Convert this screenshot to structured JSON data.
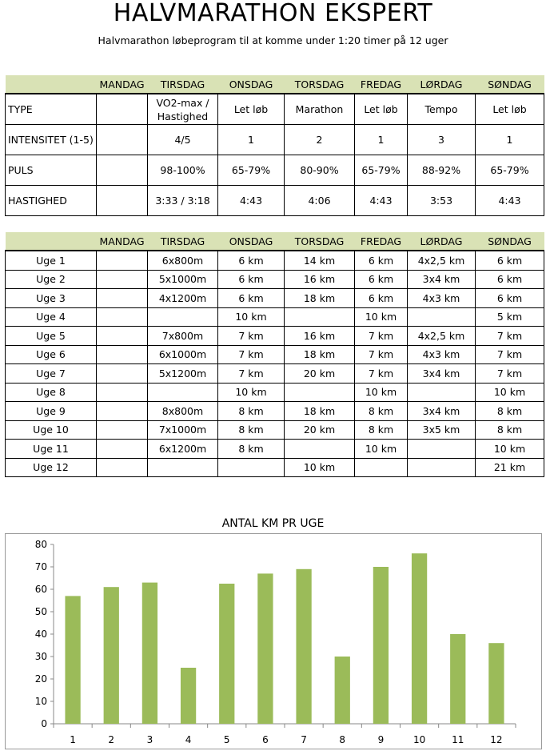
{
  "title": "HALVMARATHON EKSPERT",
  "subtitle": "Halvmarathon løbeprogram til at komme under 1:20 timer på 12 uger",
  "days": [
    "MANDAG",
    "TIRSDAG",
    "ONSDAG",
    "TORSDAG",
    "FREDAG",
    "LØRDAG",
    "SØNDAG"
  ],
  "intensity_table": {
    "rows": [
      {
        "label": "TYPE",
        "values": [
          "",
          "VO2-max / Hastighed",
          "Let løb",
          "Marathon",
          "Let løb",
          "Tempo",
          "Let løb"
        ]
      },
      {
        "label": "INTENSITET (1-5)",
        "values": [
          "",
          "4/5",
          "1",
          "2",
          "1",
          "3",
          "1"
        ]
      },
      {
        "label": "PULS",
        "values": [
          "",
          "98-100%",
          "65-79%",
          "80-90%",
          "65-79%",
          "88-92%",
          "65-79%"
        ]
      },
      {
        "label": "HASTIGHED",
        "values": [
          "",
          "3:33 / 3:18",
          "4:43",
          "4:06",
          "4:43",
          "3:53",
          "4:43"
        ]
      }
    ]
  },
  "schedule": {
    "weeks": [
      {
        "label": "Uge 1",
        "values": [
          "",
          "6x800m",
          "6 km",
          "14 km",
          "6 km",
          "4x2,5 km",
          "6 km"
        ]
      },
      {
        "label": "Uge 2",
        "values": [
          "",
          "5x1000m",
          "6 km",
          "16 km",
          "6 km",
          "3x4 km",
          "6 km"
        ]
      },
      {
        "label": "Uge 3",
        "values": [
          "",
          "4x1200m",
          "6 km",
          "18 km",
          "6 km",
          "4x3 km",
          "6 km"
        ]
      },
      {
        "label": "Uge 4",
        "values": [
          "",
          "",
          "10 km",
          "",
          "10 km",
          "",
          "5 km"
        ]
      },
      {
        "label": "Uge 5",
        "values": [
          "",
          "7x800m",
          "7 km",
          "16 km",
          "7 km",
          "4x2,5 km",
          "7 km"
        ]
      },
      {
        "label": "Uge 6",
        "values": [
          "",
          "6x1000m",
          "7 km",
          "18 km",
          "7 km",
          "4x3 km",
          "7 km"
        ]
      },
      {
        "label": "Uge 7",
        "values": [
          "",
          "5x1200m",
          "7 km",
          "20 km",
          "7 km",
          "3x4 km",
          "7 km"
        ]
      },
      {
        "label": "Uge 8",
        "values": [
          "",
          "",
          "10 km",
          "",
          "10 km",
          "",
          "10 km"
        ]
      },
      {
        "label": "Uge 9",
        "values": [
          "",
          "8x800m",
          "8 km",
          "18 km",
          "8 km",
          "3x4 km",
          "8 km"
        ]
      },
      {
        "label": "Uge 10",
        "values": [
          "",
          "7x1000m",
          "8 km",
          "20 km",
          "8 km",
          "3x5 km",
          "8 km"
        ]
      },
      {
        "label": "Uge 11",
        "values": [
          "",
          "6x1200m",
          "8 km",
          "",
          "10 km",
          "",
          "10 km"
        ]
      },
      {
        "label": "Uge 12",
        "values": [
          "",
          "",
          "",
          "10 km",
          "",
          "",
          "21 km"
        ]
      }
    ]
  },
  "chart_data": {
    "type": "bar",
    "title": "ANTAL KM PR UGE",
    "categories": [
      "1",
      "2",
      "3",
      "4",
      "5",
      "6",
      "7",
      "8",
      "9",
      "10",
      "11",
      "12"
    ],
    "values": [
      57,
      61,
      63,
      25,
      62.5,
      67,
      69,
      30,
      70,
      76,
      40,
      36
    ],
    "ylim": [
      0,
      80
    ],
    "yticks": [
      0,
      10,
      20,
      30,
      40,
      50,
      60,
      70,
      80
    ],
    "xlabel": "",
    "ylabel": "",
    "grid": false,
    "bar_color": "#9bbb59"
  }
}
